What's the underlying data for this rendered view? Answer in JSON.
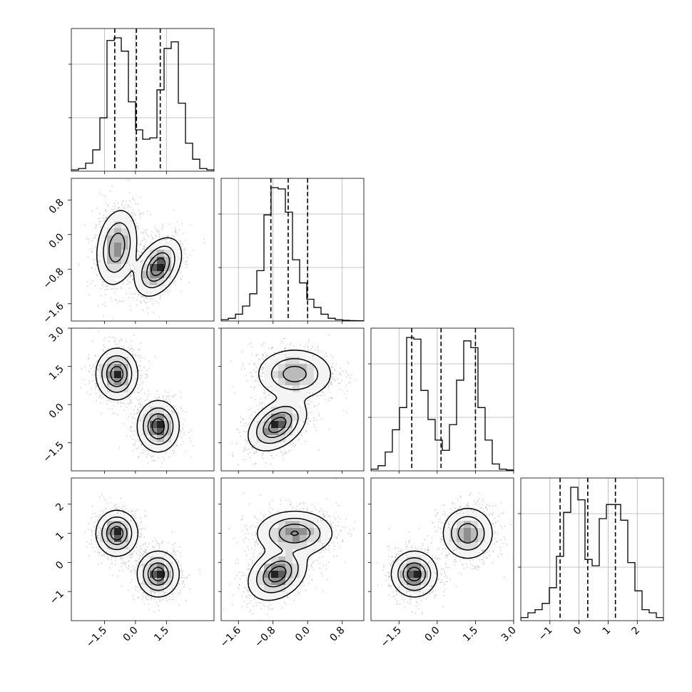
{
  "chart_data": {
    "type": "corner",
    "quantiles": [
      0.16,
      0.5,
      0.84
    ],
    "grid": true,
    "parameters": [
      {
        "id": "p0",
        "range": [
          -3.1,
          3.8
        ],
        "ticks": [
          -1.5,
          0.0,
          1.5
        ],
        "tick_labels": [
          "−1.5",
          "0.0",
          "1.5"
        ]
      },
      {
        "id": "p1",
        "range": [
          -2.0,
          1.3
        ],
        "ticks": [
          -1.6,
          -0.8,
          0.0,
          0.8
        ],
        "tick_labels": [
          "−1.6",
          "−0.8",
          "0.0",
          "0.8"
        ]
      },
      {
        "id": "p2",
        "range": [
          -2.6,
          3.0
        ],
        "ticks": [
          -1.5,
          0.0,
          1.5,
          3.0
        ],
        "tick_labels": [
          "−1.5",
          "0.0",
          "1.5",
          "3.0"
        ]
      },
      {
        "id": "p3",
        "range": [
          -2.0,
          2.9
        ],
        "ticks": [
          -1,
          0,
          1,
          2
        ],
        "tick_labels": [
          "−1",
          "0",
          "1",
          "2"
        ]
      }
    ],
    "histograms": [
      {
        "param": "p0",
        "edges_range": [
          -3.1,
          3.8
        ],
        "counts": [
          1,
          2,
          6,
          16,
          40,
          98,
          100,
          90,
          52,
          31,
          24,
          25,
          61,
          92,
          97,
          51,
          21,
          9,
          2,
          1
        ],
        "quantile_values": [
          -1.0,
          0.05,
          1.2
        ]
      },
      {
        "param": "p1",
        "edges_range": [
          -2.0,
          1.3
        ],
        "counts": [
          1,
          2,
          5,
          11,
          20,
          37,
          78,
          98,
          97,
          80,
          45,
          28,
          16,
          10,
          5,
          2,
          1,
          0.5,
          0.3,
          0.2
        ],
        "quantile_values": [
          -0.85,
          -0.45,
          0.0
        ]
      },
      {
        "param": "p2",
        "edges_range": [
          -2.6,
          3.0
        ],
        "counts": [
          1,
          3,
          11,
          24,
          37,
          78,
          77,
          47,
          30,
          18,
          12,
          27,
          53,
          76,
          72,
          37,
          18,
          4,
          1,
          0.5
        ],
        "quantile_values": [
          -1.0,
          0.15,
          1.5
        ]
      },
      {
        "param": "p3",
        "edges_range": [
          -2.0,
          2.9
        ],
        "counts": [
          2,
          5,
          7,
          11,
          21,
          41,
          69,
          85,
          77,
          39,
          35,
          65,
          74,
          74,
          64,
          37,
          19,
          7,
          5,
          2
        ],
        "quantile_values": [
          -0.65,
          0.3,
          1.25
        ]
      }
    ],
    "pairs": [
      {
        "x": "p0",
        "y": "p1",
        "components": [
          {
            "mean": [
              -0.9,
              -0.3
            ],
            "sd": [
              0.45,
              0.4
            ],
            "rho": 0.2,
            "weight": 0.5
          },
          {
            "mean": [
              1.1,
              -0.75
            ],
            "sd": [
              0.5,
              0.3
            ],
            "rho": 0.4,
            "weight": 0.5
          }
        ]
      },
      {
        "x": "p0",
        "y": "p2",
        "components": [
          {
            "mean": [
              -0.9,
              1.2
            ],
            "sd": [
              0.45,
              0.45
            ],
            "rho": 0.0,
            "weight": 0.5
          },
          {
            "mean": [
              1.1,
              -0.85
            ],
            "sd": [
              0.45,
              0.45
            ],
            "rho": 0.0,
            "weight": 0.5
          }
        ]
      },
      {
        "x": "p1",
        "y": "p2",
        "components": [
          {
            "mean": [
              -0.3,
              1.2
            ],
            "sd": [
              0.4,
              0.45
            ],
            "rho": 0.0,
            "weight": 0.5
          },
          {
            "mean": [
              -0.7,
              -0.8
            ],
            "sd": [
              0.3,
              0.45
            ],
            "rho": 0.4,
            "weight": 0.5
          }
        ]
      },
      {
        "x": "p0",
        "y": "p3",
        "components": [
          {
            "mean": [
              -0.9,
              1.0
            ],
            "sd": [
              0.45,
              0.35
            ],
            "rho": 0.0,
            "weight": 0.5
          },
          {
            "mean": [
              1.1,
              -0.4
            ],
            "sd": [
              0.45,
              0.35
            ],
            "rho": 0.0,
            "weight": 0.5
          }
        ]
      },
      {
        "x": "p1",
        "y": "p3",
        "components": [
          {
            "mean": [
              -0.3,
              1.0
            ],
            "sd": [
              0.4,
              0.35
            ],
            "rho": 0.0,
            "weight": 0.5
          },
          {
            "mean": [
              -0.7,
              -0.4
            ],
            "sd": [
              0.3,
              0.4
            ],
            "rho": 0.3,
            "weight": 0.5
          }
        ]
      },
      {
        "x": "p2",
        "y": "p3",
        "components": [
          {
            "mean": [
              -0.9,
              -0.4
            ],
            "sd": [
              0.4,
              0.35
            ],
            "rho": 0.0,
            "weight": 0.5
          },
          {
            "mean": [
              1.2,
              1.0
            ],
            "sd": [
              0.45,
              0.4
            ],
            "rho": 0.0,
            "weight": 0.5
          }
        ]
      }
    ]
  }
}
